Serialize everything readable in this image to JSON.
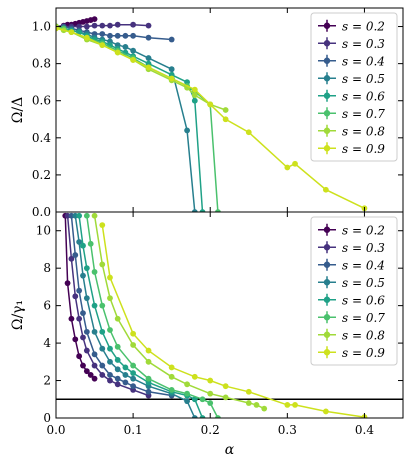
{
  "chart_data": [
    {
      "type": "scatter",
      "title": "",
      "xlabel": "",
      "ylabel": "Ω/Δ",
      "xlim": [
        0,
        0.45
      ],
      "ylim": [
        0,
        1.1
      ],
      "xticks": [
        "0.0",
        "0.1",
        "0.2",
        "0.3",
        "0.4"
      ],
      "xtick_values": [
        0,
        0.1,
        0.2,
        0.3,
        0.4
      ],
      "yticks": [
        "0.0",
        "0.2",
        "0.4",
        "0.6",
        "0.8",
        "1.0"
      ],
      "ytick_values": [
        0,
        0.2,
        0.4,
        0.6,
        0.8,
        1.0
      ],
      "show_xtick_labels": false,
      "grid": false,
      "legend": "top-right",
      "series": [
        {
          "name": "s = 0.2",
          "color": "#440154",
          "x": [
            0.0,
            0.01,
            0.015,
            0.02,
            0.025,
            0.03,
            0.035,
            0.04,
            0.045,
            0.05
          ],
          "y": [
            1.0,
            1.005,
            1.01,
            1.01,
            1.015,
            1.02,
            1.025,
            1.03,
            1.035,
            1.04
          ]
        },
        {
          "name": "s = 0.3",
          "color": "#46327e",
          "x": [
            0.0,
            0.01,
            0.02,
            0.03,
            0.04,
            0.05,
            0.06,
            0.07,
            0.08,
            0.1,
            0.12
          ],
          "y": [
            1.0,
            1.0,
            1.0,
            1.0,
            1.0,
            1.005,
            1.005,
            1.005,
            1.01,
            1.01,
            1.005
          ]
        },
        {
          "name": "s = 0.4",
          "color": "#365c8d",
          "x": [
            0.0,
            0.01,
            0.02,
            0.03,
            0.04,
            0.05,
            0.06,
            0.07,
            0.08,
            0.09,
            0.1,
            0.12,
            0.15
          ],
          "y": [
            1.0,
            1.0,
            0.99,
            0.98,
            0.97,
            0.96,
            0.96,
            0.95,
            0.95,
            0.95,
            0.95,
            0.94,
            0.93
          ]
        },
        {
          "name": "s = 0.5",
          "color": "#277f8e",
          "x": [
            0.0,
            0.01,
            0.02,
            0.03,
            0.04,
            0.05,
            0.06,
            0.07,
            0.08,
            0.09,
            0.1,
            0.12,
            0.15,
            0.17,
            0.18
          ],
          "y": [
            1.0,
            0.99,
            0.98,
            0.97,
            0.96,
            0.94,
            0.93,
            0.92,
            0.9,
            0.89,
            0.87,
            0.83,
            0.77,
            0.44,
            0.0
          ]
        },
        {
          "name": "s = 0.6",
          "color": "#1fa187",
          "x": [
            0.0,
            0.01,
            0.02,
            0.03,
            0.04,
            0.05,
            0.06,
            0.07,
            0.08,
            0.09,
            0.1,
            0.12,
            0.15,
            0.17,
            0.18,
            0.19
          ],
          "y": [
            1.0,
            0.99,
            0.98,
            0.97,
            0.95,
            0.93,
            0.92,
            0.9,
            0.88,
            0.86,
            0.84,
            0.8,
            0.74,
            0.7,
            0.6,
            0.0
          ]
        },
        {
          "name": "s = 0.7",
          "color": "#4ac16d",
          "x": [
            0.0,
            0.01,
            0.02,
            0.04,
            0.06,
            0.08,
            0.1,
            0.12,
            0.15,
            0.17,
            0.18,
            0.2,
            0.21
          ],
          "y": [
            1.0,
            0.99,
            0.97,
            0.94,
            0.91,
            0.87,
            0.83,
            0.78,
            0.72,
            0.68,
            0.65,
            0.58,
            0.0
          ]
        },
        {
          "name": "s = 0.8",
          "color": "#a0da39",
          "x": [
            0.0,
            0.01,
            0.02,
            0.04,
            0.06,
            0.08,
            0.1,
            0.12,
            0.15,
            0.17,
            0.18,
            0.2,
            0.22
          ],
          "y": [
            1.0,
            0.98,
            0.97,
            0.93,
            0.9,
            0.86,
            0.82,
            0.77,
            0.71,
            0.67,
            0.63,
            0.58,
            0.55
          ]
        },
        {
          "name": "s = 0.9",
          "color": "#cde11d",
          "x": [
            0.0,
            0.02,
            0.04,
            0.06,
            0.08,
            0.1,
            0.12,
            0.15,
            0.18,
            0.2,
            0.22,
            0.25,
            0.3,
            0.31,
            0.35,
            0.4
          ],
          "y": [
            0.99,
            0.97,
            0.94,
            0.9,
            0.86,
            0.82,
            0.78,
            0.72,
            0.66,
            0.58,
            0.5,
            0.43,
            0.24,
            0.26,
            0.12,
            0.02
          ]
        }
      ]
    },
    {
      "type": "line",
      "title": "",
      "xlabel": "α",
      "ylabel": "Ω/γ₁",
      "xlim": [
        0,
        0.45
      ],
      "ylim": [
        0,
        11
      ],
      "xticks": [
        "0.0",
        "0.1",
        "0.2",
        "0.3",
        "0.4"
      ],
      "xtick_values": [
        0,
        0.1,
        0.2,
        0.3,
        0.4
      ],
      "yticks": [
        "0",
        "2",
        "4",
        "6",
        "8",
        "10"
      ],
      "ytick_values": [
        0,
        2,
        4,
        6,
        8,
        10
      ],
      "show_xtick_labels": true,
      "grid": false,
      "legend": "top-right",
      "hline": 1,
      "series": [
        {
          "name": "s = 0.2",
          "color": "#440154",
          "x": [
            0.012,
            0.015,
            0.02,
            0.025,
            0.03,
            0.035,
            0.04,
            0.045,
            0.05
          ],
          "y": [
            10.8,
            7.2,
            5.3,
            4.2,
            3.3,
            2.8,
            2.5,
            2.3,
            2.1
          ]
        },
        {
          "name": "s = 0.3",
          "color": "#46327e",
          "x": [
            0.015,
            0.02,
            0.025,
            0.03,
            0.035,
            0.04,
            0.05,
            0.06,
            0.07,
            0.08,
            0.1,
            0.12
          ],
          "y": [
            10.8,
            8.5,
            6.5,
            5.3,
            4.3,
            3.6,
            2.8,
            2.3,
            2.0,
            1.8,
            1.5,
            1.2
          ]
        },
        {
          "name": "s = 0.4",
          "color": "#365c8d",
          "x": [
            0.02,
            0.025,
            0.03,
            0.035,
            0.04,
            0.05,
            0.06,
            0.07,
            0.08,
            0.09,
            0.1,
            0.12,
            0.15
          ],
          "y": [
            10.8,
            8.7,
            6.8,
            5.6,
            4.6,
            3.4,
            2.8,
            2.3,
            2.1,
            1.9,
            1.7,
            1.4,
            1.2
          ]
        },
        {
          "name": "s = 0.5",
          "color": "#277f8e",
          "x": [
            0.025,
            0.03,
            0.035,
            0.04,
            0.05,
            0.06,
            0.07,
            0.08,
            0.09,
            0.1,
            0.12,
            0.15,
            0.17,
            0.18
          ],
          "y": [
            10.8,
            9.4,
            7.6,
            6.4,
            4.6,
            3.7,
            3.0,
            2.6,
            2.3,
            2.1,
            1.7,
            1.3,
            0.9,
            0.0
          ]
        },
        {
          "name": "s = 0.6",
          "color": "#1fa187",
          "x": [
            0.03,
            0.035,
            0.04,
            0.05,
            0.06,
            0.07,
            0.08,
            0.09,
            0.1,
            0.12,
            0.15,
            0.17,
            0.18,
            0.19
          ],
          "y": [
            10.8,
            9.2,
            8.0,
            6.0,
            4.6,
            3.7,
            3.1,
            2.7,
            2.4,
            1.9,
            1.4,
            1.2,
            1.0,
            0.0
          ]
        },
        {
          "name": "s = 0.7",
          "color": "#4ac16d",
          "x": [
            0.04,
            0.045,
            0.05,
            0.06,
            0.07,
            0.08,
            0.1,
            0.12,
            0.15,
            0.17,
            0.19,
            0.2,
            0.21
          ],
          "y": [
            10.8,
            9.3,
            7.8,
            6.0,
            4.7,
            3.8,
            2.8,
            2.1,
            1.5,
            1.3,
            1.0,
            0.8,
            0.0
          ]
        },
        {
          "name": "s = 0.8",
          "color": "#a0da39",
          "x": [
            0.05,
            0.06,
            0.07,
            0.08,
            0.1,
            0.12,
            0.15,
            0.17,
            0.2,
            0.22,
            0.25,
            0.26,
            0.27
          ],
          "y": [
            10.8,
            8.2,
            6.4,
            5.3,
            3.9,
            3.0,
            2.2,
            1.8,
            1.3,
            1.1,
            0.8,
            0.7,
            0.5
          ]
        },
        {
          "name": "s = 0.9",
          "color": "#cde11d",
          "x": [
            0.06,
            0.07,
            0.1,
            0.12,
            0.15,
            0.18,
            0.2,
            0.22,
            0.25,
            0.3,
            0.31,
            0.35,
            0.4
          ],
          "y": [
            10.3,
            7.5,
            4.5,
            3.6,
            2.7,
            2.2,
            2.0,
            1.7,
            1.4,
            0.7,
            0.7,
            0.35,
            0.05
          ]
        }
      ]
    }
  ]
}
